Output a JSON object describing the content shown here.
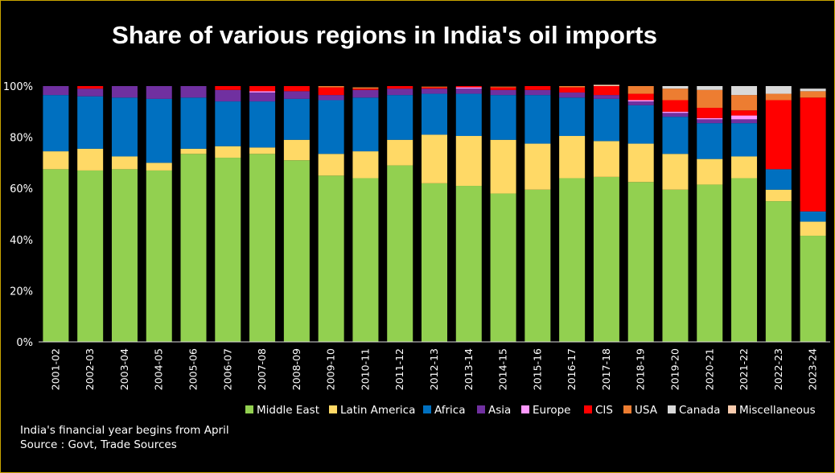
{
  "chart_data": {
    "type": "bar",
    "stacked": true,
    "title": "Share of various regions in India's oil imports",
    "xlabel": "",
    "ylabel": "",
    "ylim": [
      0,
      100
    ],
    "yticks": [
      "0%",
      "20%",
      "40%",
      "60%",
      "80%",
      "100%"
    ],
    "legend_position": "bottom",
    "categories": [
      "2001-02",
      "2002-03",
      "2003-04",
      "2004-05",
      "2005-06",
      "2006-07",
      "2007-08",
      "2008-09",
      "2009-10",
      "2010-11",
      "2011-12",
      "2012-13",
      "2013-14",
      "2014-15",
      "2015-16",
      "2016-17",
      "2017-18",
      "2018-19",
      "2019-20",
      "2020-21",
      "2021-22",
      "2022-23",
      "2023-24"
    ],
    "series": [
      {
        "name": "Middle East",
        "color": "#92d050",
        "values": [
          67.5,
          67,
          67.5,
          67,
          73.5,
          72,
          73.5,
          71,
          65,
          64,
          69,
          62,
          61,
          58,
          59.5,
          64,
          64.5,
          62.5,
          59.5,
          61.5,
          64,
          55,
          41.5
        ]
      },
      {
        "name": "Latin America",
        "color": "#ffd966",
        "values": [
          7,
          8.5,
          5,
          3,
          2,
          4.5,
          2.5,
          8,
          8.5,
          10.5,
          10,
          19,
          19.5,
          21,
          18,
          16.5,
          14,
          15,
          14,
          10,
          8.5,
          4.5,
          5.5
        ]
      },
      {
        "name": "Africa",
        "color": "#0070c0",
        "values": [
          22,
          20.5,
          23,
          25,
          20,
          17.5,
          18,
          16,
          21,
          21,
          17.5,
          16,
          16.5,
          17.5,
          19,
          15,
          16.5,
          15,
          14.5,
          14,
          13,
          8,
          4
        ]
      },
      {
        "name": "Asia",
        "color": "#7030a0",
        "values": [
          3.5,
          3,
          4.5,
          5,
          4.5,
          4.5,
          3.5,
          3,
          2,
          3,
          2.5,
          2,
          2,
          2,
          2,
          2,
          1.5,
          1.5,
          1.5,
          1.5,
          1.5,
          0,
          0
        ]
      },
      {
        "name": "Europe",
        "color": "#ff99ff",
        "values": [
          0,
          0,
          0,
          0,
          0,
          0,
          0.5,
          0,
          0,
          0,
          0,
          0,
          0.5,
          0,
          0,
          0,
          0,
          0.5,
          0.5,
          0.5,
          1.5,
          0,
          0
        ]
      },
      {
        "name": "CIS",
        "color": "#ff0000",
        "values": [
          0,
          1,
          0,
          0,
          0,
          1.5,
          2,
          2,
          3,
          0.5,
          1,
          0.5,
          0.5,
          1,
          1.5,
          2,
          3.5,
          2.5,
          4.5,
          4,
          2,
          27,
          44.5
        ]
      },
      {
        "name": "USA",
        "color": "#ed7d31",
        "values": [
          0,
          0,
          0,
          0,
          0,
          0,
          0,
          0,
          0.5,
          0.5,
          0,
          0.3,
          0,
          0.3,
          0,
          0.5,
          0,
          3,
          4.5,
          7,
          6,
          2.5,
          2.5
        ]
      },
      {
        "name": "Canada",
        "color": "#d9d9d9",
        "values": [
          0,
          0,
          0,
          0,
          0,
          0,
          0,
          0,
          0,
          0,
          0,
          0,
          0,
          0,
          0,
          0,
          0,
          0,
          1,
          1.5,
          3.5,
          3,
          1
        ]
      },
      {
        "name": "Miscellaneous",
        "color": "#f8cbad",
        "values": [
          0,
          0,
          0,
          0,
          0,
          0,
          0,
          0,
          0,
          0,
          0,
          0,
          0,
          0,
          0,
          0,
          0.5,
          0,
          0,
          0,
          0,
          0,
          0
        ]
      }
    ]
  },
  "footnote": {
    "line1": "India's financial year begins from April",
    "line2": "Source : Govt, Trade Sources"
  }
}
